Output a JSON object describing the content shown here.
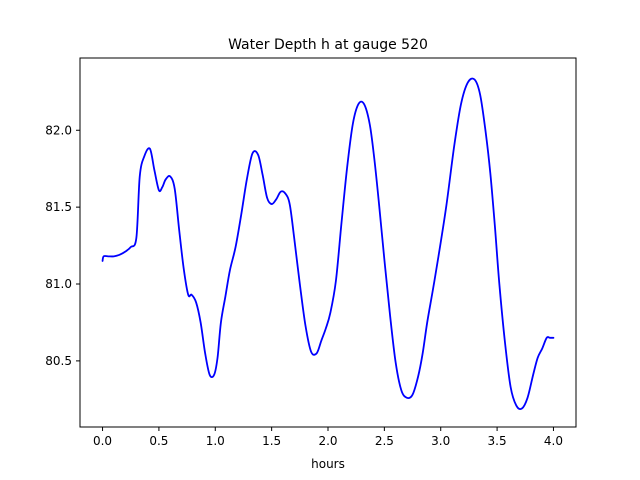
{
  "chart_data": {
    "type": "line",
    "title": "Water Depth h at gauge 520",
    "xlabel": "hours",
    "ylabel": "",
    "xlim": [
      -0.2,
      4.2
    ],
    "ylim": [
      80.07,
      82.47
    ],
    "xticks": [
      0.0,
      0.5,
      1.0,
      1.5,
      2.0,
      2.5,
      3.0,
      3.5,
      4.0
    ],
    "xtick_labels": [
      "0.0",
      "0.5",
      "1.0",
      "1.5",
      "2.0",
      "2.5",
      "3.0",
      "3.5",
      "4.0"
    ],
    "yticks": [
      80.5,
      81.0,
      81.5,
      82.0
    ],
    "ytick_labels": [
      "80.5",
      "81.0",
      "81.5",
      "82.0"
    ],
    "grid": false,
    "line_color": "#0000ff",
    "series": [
      {
        "x": [
          0.0,
          0.01,
          0.05,
          0.1,
          0.15,
          0.2,
          0.25,
          0.3,
          0.33,
          0.37,
          0.42,
          0.46,
          0.5,
          0.53,
          0.56,
          0.6,
          0.64,
          0.68,
          0.72,
          0.76,
          0.79,
          0.83,
          0.87,
          0.91,
          0.95,
          0.99,
          1.02,
          1.05,
          1.09,
          1.13,
          1.18,
          1.23,
          1.28,
          1.33,
          1.38,
          1.42,
          1.46,
          1.5,
          1.54,
          1.58,
          1.62,
          1.66,
          1.7,
          1.75,
          1.8,
          1.85,
          1.9,
          1.94,
          1.98,
          2.02,
          2.07,
          2.12,
          2.17,
          2.22,
          2.27,
          2.32,
          2.37,
          2.41,
          2.45,
          2.5,
          2.55,
          2.6,
          2.65,
          2.7,
          2.75,
          2.8,
          2.84,
          2.88,
          2.93,
          2.98,
          3.05,
          3.12,
          3.18,
          3.24,
          3.3,
          3.35,
          3.4,
          3.44,
          3.48,
          3.52,
          3.57,
          3.62,
          3.67,
          3.72,
          3.77,
          3.82,
          3.86,
          3.9,
          3.94,
          3.97,
          4.0
        ],
        "y": [
          81.15,
          81.18,
          81.18,
          81.18,
          81.19,
          81.21,
          81.24,
          81.3,
          81.7,
          81.83,
          81.88,
          81.74,
          81.61,
          81.63,
          81.68,
          81.7,
          81.62,
          81.35,
          81.1,
          80.93,
          80.93,
          80.88,
          80.75,
          80.55,
          80.41,
          80.41,
          80.52,
          80.75,
          80.92,
          81.09,
          81.24,
          81.45,
          81.68,
          81.85,
          81.84,
          81.71,
          81.56,
          81.52,
          81.55,
          81.6,
          81.59,
          81.52,
          81.3,
          81.0,
          80.73,
          80.56,
          80.55,
          80.63,
          80.71,
          80.81,
          81.02,
          81.4,
          81.76,
          82.04,
          82.17,
          82.17,
          82.04,
          81.82,
          81.54,
          81.16,
          80.8,
          80.49,
          80.31,
          80.26,
          80.28,
          80.4,
          80.55,
          80.75,
          80.96,
          81.18,
          81.51,
          81.9,
          82.17,
          82.31,
          82.33,
          82.23,
          81.98,
          81.72,
          81.38,
          81.0,
          80.62,
          80.33,
          80.21,
          80.19,
          80.26,
          80.41,
          80.52,
          80.58,
          80.65,
          80.65,
          80.65
        ]
      }
    ]
  }
}
